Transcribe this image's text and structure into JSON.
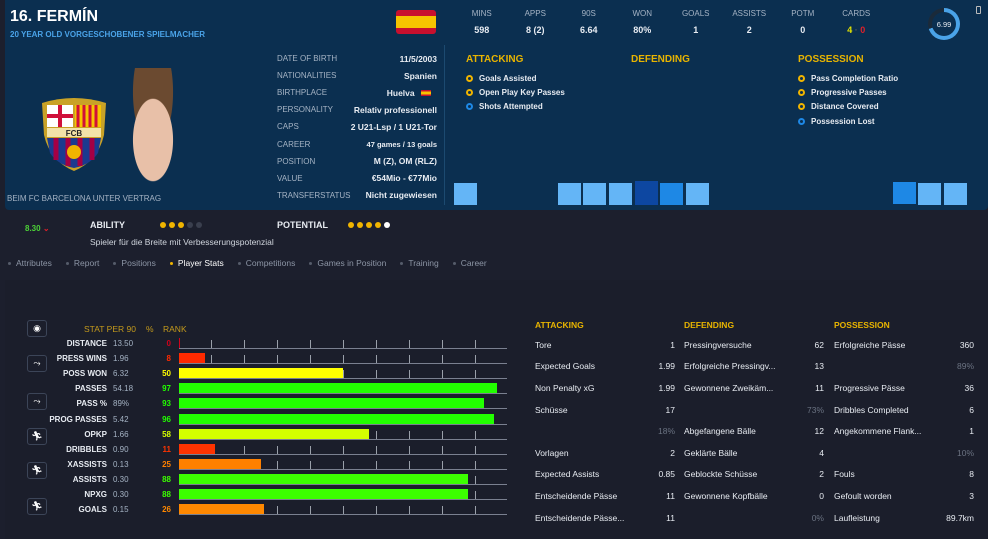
{
  "player": {
    "name": "16. FERMÍN",
    "subtitle": "20 YEAR OLD  VORGESCHOBENER SPIELMACHER",
    "contract": "BEIM FC BARCELONA UNTER VERTRAG",
    "crest_text": "FCB"
  },
  "info": [
    {
      "label": "DATE OF BIRTH",
      "value": "11/5/2003"
    },
    {
      "label": "NATIONALITIES",
      "value": "Spanien"
    },
    {
      "label": "BIRTHPLACE",
      "value": "Huelva"
    },
    {
      "label": "PERSONALITY",
      "value": "Relativ professionell"
    },
    {
      "label": "CAPS",
      "value": "2 U21-Lsp / 1 U21-Tor"
    },
    {
      "label": "CAREER",
      "value": "47 games /   13 goals"
    },
    {
      "label": "POSITION",
      "value": "M (Z), OM (RLZ)"
    },
    {
      "label": "VALUE",
      "value": "€54Mio - €77Mio"
    },
    {
      "label": "TRANSFERSTATUS",
      "value": "Nicht zugewiesen"
    }
  ],
  "season": [
    {
      "label": "MINS",
      "value": "598"
    },
    {
      "label": "APPS",
      "value": "8 (2)"
    },
    {
      "label": "90S",
      "value": "6.64"
    },
    {
      "label": "WON",
      "value": "80%"
    },
    {
      "label": "GOALS",
      "value": "1"
    },
    {
      "label": "ASSISTS",
      "value": "2"
    },
    {
      "label": "POTM",
      "value": "0"
    }
  ],
  "cards": {
    "label": "CARDS",
    "yellow": "4",
    "red": "0"
  },
  "rating": "6.99",
  "traits": {
    "attacking": {
      "title": "ATTACKING",
      "items": [
        "Goals Assisted",
        "Open Play Key Passes",
        "Shots Attempted"
      ]
    },
    "defending": {
      "title": "DEFENDING"
    },
    "possession": {
      "title": "POSSESSION",
      "items": [
        "Pass Completion Ratio",
        "Progressive Passes",
        "Distance Covered",
        "Possession Lost"
      ]
    }
  },
  "ability": {
    "form": "8.30",
    "label": "ABILITY",
    "stars": 3,
    "potential_label": "POTENTIAL",
    "potential_stars": 4.5,
    "description": "Spieler für die Breite mit Verbesserungspotenzial"
  },
  "tabs": [
    "Attributes",
    "Report",
    "Positions",
    "Player Stats",
    "Competitions",
    "Games in Position",
    "Training",
    "Career"
  ],
  "chart_data": {
    "type": "bar",
    "headers": {
      "stat": "STAT PER 90",
      "pct": "%",
      "rank": "RANK"
    },
    "rows": [
      {
        "name": "DISTANCE",
        "value": "13.50",
        "pct": 0,
        "color": "#d0021b"
      },
      {
        "name": "PRESS WINS",
        "value": "1.96",
        "pct": 8,
        "color": "#ff2a00"
      },
      {
        "name": "POSS WON",
        "value": "6.32",
        "pct": 50,
        "color": "#ffff00"
      },
      {
        "name": "PASSES",
        "value": "54.18",
        "pct": 97,
        "color": "#22ff00"
      },
      {
        "name": "PASS %",
        "value": "89%",
        "pct": 93,
        "color": "#22ff00"
      },
      {
        "name": "PROG PASSES",
        "value": "5.42",
        "pct": 96,
        "color": "#22ff00"
      },
      {
        "name": "OPKP",
        "value": "1.66",
        "pct": 58,
        "color": "#d4ff00"
      },
      {
        "name": "DRIBBLES",
        "value": "0.90",
        "pct": 11,
        "color": "#ff3300"
      },
      {
        "name": "XASSISTS",
        "value": "0.13",
        "pct": 25,
        "color": "#ff8000"
      },
      {
        "name": "ASSISTS",
        "value": "0.30",
        "pct": 88,
        "color": "#3cff00"
      },
      {
        "name": "NPXG",
        "value": "0.30",
        "pct": 88,
        "color": "#3cff00"
      },
      {
        "name": "GOALS",
        "value": "0.15",
        "pct": 26,
        "color": "#ff8800"
      }
    ]
  },
  "tables": [
    {
      "title": "ATTACKING",
      "rows": [
        [
          "Tore",
          "1"
        ],
        [
          "Expected Goals",
          "1.99"
        ],
        [
          "Non Penalty xG",
          "1.99"
        ],
        [
          "Schüsse",
          "17"
        ],
        [
          "",
          "18%"
        ],
        [
          "Vorlagen",
          "2"
        ],
        [
          "Expected Assists",
          "0.85"
        ],
        [
          "Entscheidende Pässe",
          "11"
        ],
        [
          "Entscheidende Pässe...",
          "11"
        ]
      ]
    },
    {
      "title": "DEFENDING",
      "rows": [
        [
          "Pressingversuche",
          "62"
        ],
        [
          "Erfolgreiche Pressingv...",
          "13"
        ],
        [
          "Gewonnene Zweikäm...",
          "11"
        ],
        [
          "",
          "73%"
        ],
        [
          "Abgefangene Bälle",
          "12"
        ],
        [
          "Geklärte Bälle",
          "4"
        ],
        [
          "Geblockte Schüsse",
          "2"
        ],
        [
          "Gewonnene Kopfbälle",
          "0"
        ],
        [
          "",
          "0%"
        ]
      ]
    },
    {
      "title": "POSSESSION",
      "rows": [
        [
          "Erfolgreiche Pässe",
          "360"
        ],
        [
          "",
          "89%"
        ],
        [
          "Progressive Pässe",
          "36"
        ],
        [
          "Dribbles Completed",
          "6"
        ],
        [
          "Angekommene Flank...",
          "1"
        ],
        [
          "",
          "10%"
        ],
        [
          "Fouls",
          "8"
        ],
        [
          "Gefoult worden",
          "3"
        ],
        [
          "Laufleistung",
          "89.7km"
        ]
      ]
    }
  ]
}
